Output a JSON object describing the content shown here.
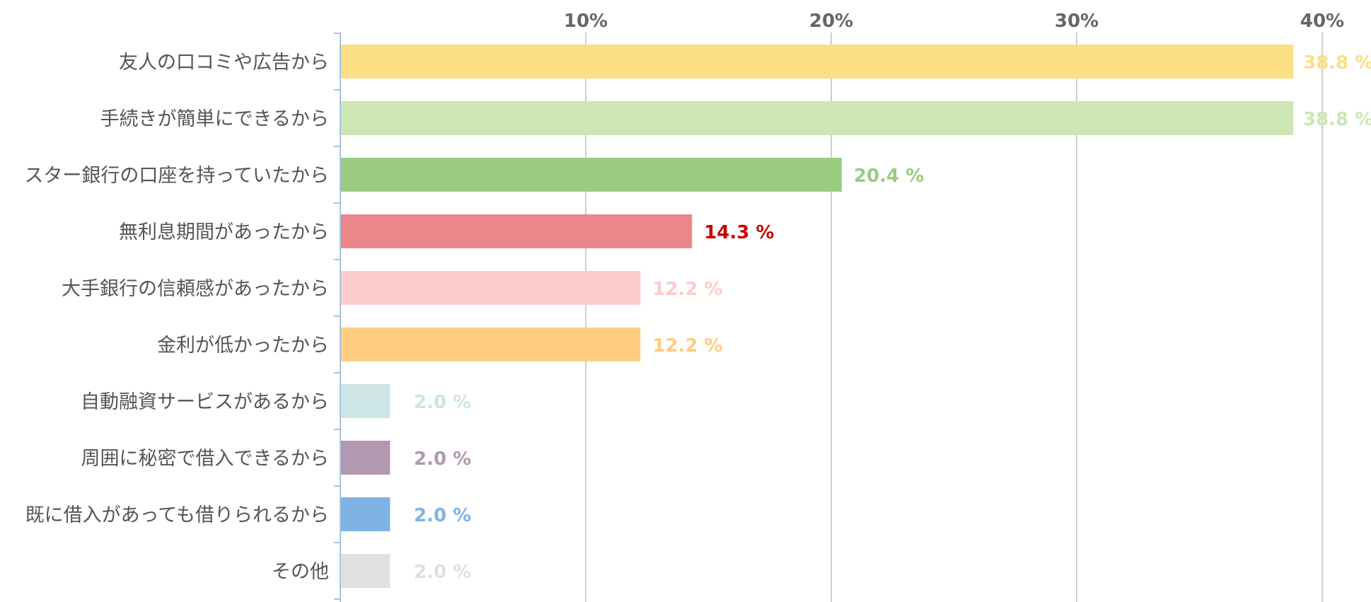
{
  "chart_data": {
    "type": "bar",
    "orientation": "horizontal",
    "title": "",
    "xlabel": "",
    "ylabel": "",
    "xlim": [
      0,
      40
    ],
    "x_ticks": [
      {
        "value": 10,
        "label": "10%"
      },
      {
        "value": 20,
        "label": "20%"
      },
      {
        "value": 30,
        "label": "30%"
      },
      {
        "value": 40,
        "label": "40%"
      }
    ],
    "grid": true,
    "legend": "none",
    "bars": [
      {
        "category": "友人の口コミや広告から",
        "value": 38.8,
        "label": "38.8 %",
        "color": "#fadf85",
        "label_color": "#fadf85"
      },
      {
        "category": "手続きが簡単にできるから",
        "value": 38.8,
        "label": "38.8 %",
        "color": "#cde6b3",
        "label_color": "#cde6b3"
      },
      {
        "category": "スター銀行の口座を持っていたから",
        "value": 20.4,
        "label": "20.4 %",
        "color": "#99cc7f",
        "label_color": "#99cc7f"
      },
      {
        "category": "無利息期間があったから",
        "value": 14.3,
        "label": "14.3 %",
        "color": "#eb868a",
        "label_color": "#cc0000"
      },
      {
        "category": "大手銀行の信頼感があったから",
        "value": 12.2,
        "label": "12.2 %",
        "color": "#fdcccc",
        "label_color": "#fdcccc"
      },
      {
        "category": "金利が低かったから",
        "value": 12.2,
        "label": "12.2 %",
        "color": "#fecd82",
        "label_color": "#fecd82"
      },
      {
        "category": "自動融資サービスがあるから",
        "value": 2.0,
        "label": "2.0 %",
        "color": "#cde5e4",
        "label_color": "#cde5e4"
      },
      {
        "category": "周囲に秘密で借入できるから",
        "value": 2.0,
        "label": "2.0 %",
        "color": "#b199b1",
        "label_color": "#b199b1"
      },
      {
        "category": "既に借入があっても借りられるから",
        "value": 2.0,
        "label": "2.0 %",
        "color": "#80b3e5",
        "label_color": "#80b3e5"
      },
      {
        "category": "その他",
        "value": 2.0,
        "label": "2.0 %",
        "color": "#e0e0e0",
        "label_color": "#e0e0e0"
      }
    ]
  }
}
